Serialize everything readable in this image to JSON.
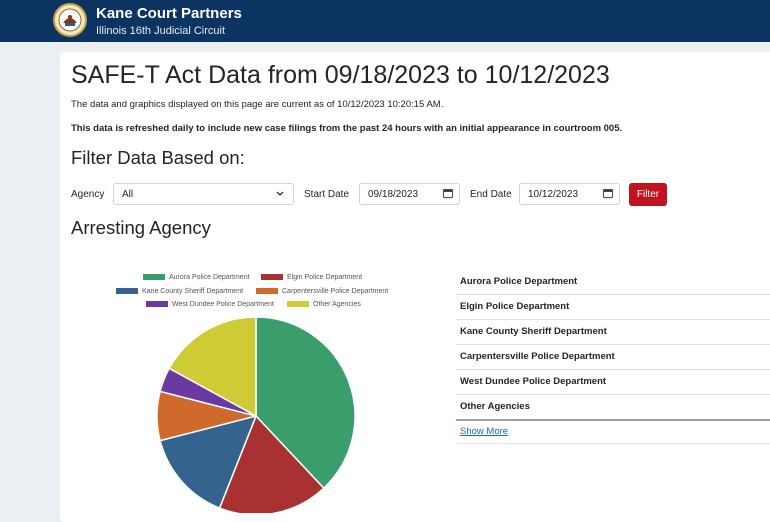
{
  "header": {
    "title": "Kane Court Partners",
    "subtitle": "Illinois 16th Judicial Circuit"
  },
  "page": {
    "title": "SAFE-T Act Data from 09/18/2023 to 10/12/2023",
    "as_of": "The data and graphics displayed on this page are current as of 10/12/2023 10:20:15 AM.",
    "refresh_note": "This data is refreshed daily to include new case filings from the past 24 hours with an initial appearance in courtroom 005."
  },
  "filters": {
    "heading": "Filter Data Based on:",
    "agency_label": "Agency",
    "agency_value": "All",
    "start_label": "Start Date",
    "start_value": "09/18/2023",
    "end_label": "End Date",
    "end_value": "10/12/2023",
    "button_label": "Filter"
  },
  "section": {
    "heading": "Arresting Agency"
  },
  "colors": {
    "navbar": "#0b3463",
    "filter_button": "#c1121f",
    "link": "#1a67c4"
  },
  "chart_data": {
    "type": "pie",
    "legend_position": "top",
    "series": [
      {
        "name": "Aurora Police Department",
        "value": 38,
        "color": "#3a9e6c"
      },
      {
        "name": "Elgin Police Department",
        "value": 18,
        "color": "#a83232"
      },
      {
        "name": "Kane County Sheriff Department",
        "value": 15,
        "color": "#33638e"
      },
      {
        "name": "Carpentersville Police Department",
        "value": 8,
        "color": "#d06a2c"
      },
      {
        "name": "West Dundee Police Department",
        "value": 4,
        "color": "#6a3aa0"
      },
      {
        "name": "Other Agencies",
        "value": 17,
        "color": "#cfcb35"
      }
    ]
  },
  "table": {
    "rows": [
      "Aurora Police Department",
      "Elgin Police Department",
      "Kane County Sheriff Department",
      "Carpentersville Police Department",
      "West Dundee Police Department",
      "Other Agencies"
    ],
    "show_more": "Show More"
  }
}
